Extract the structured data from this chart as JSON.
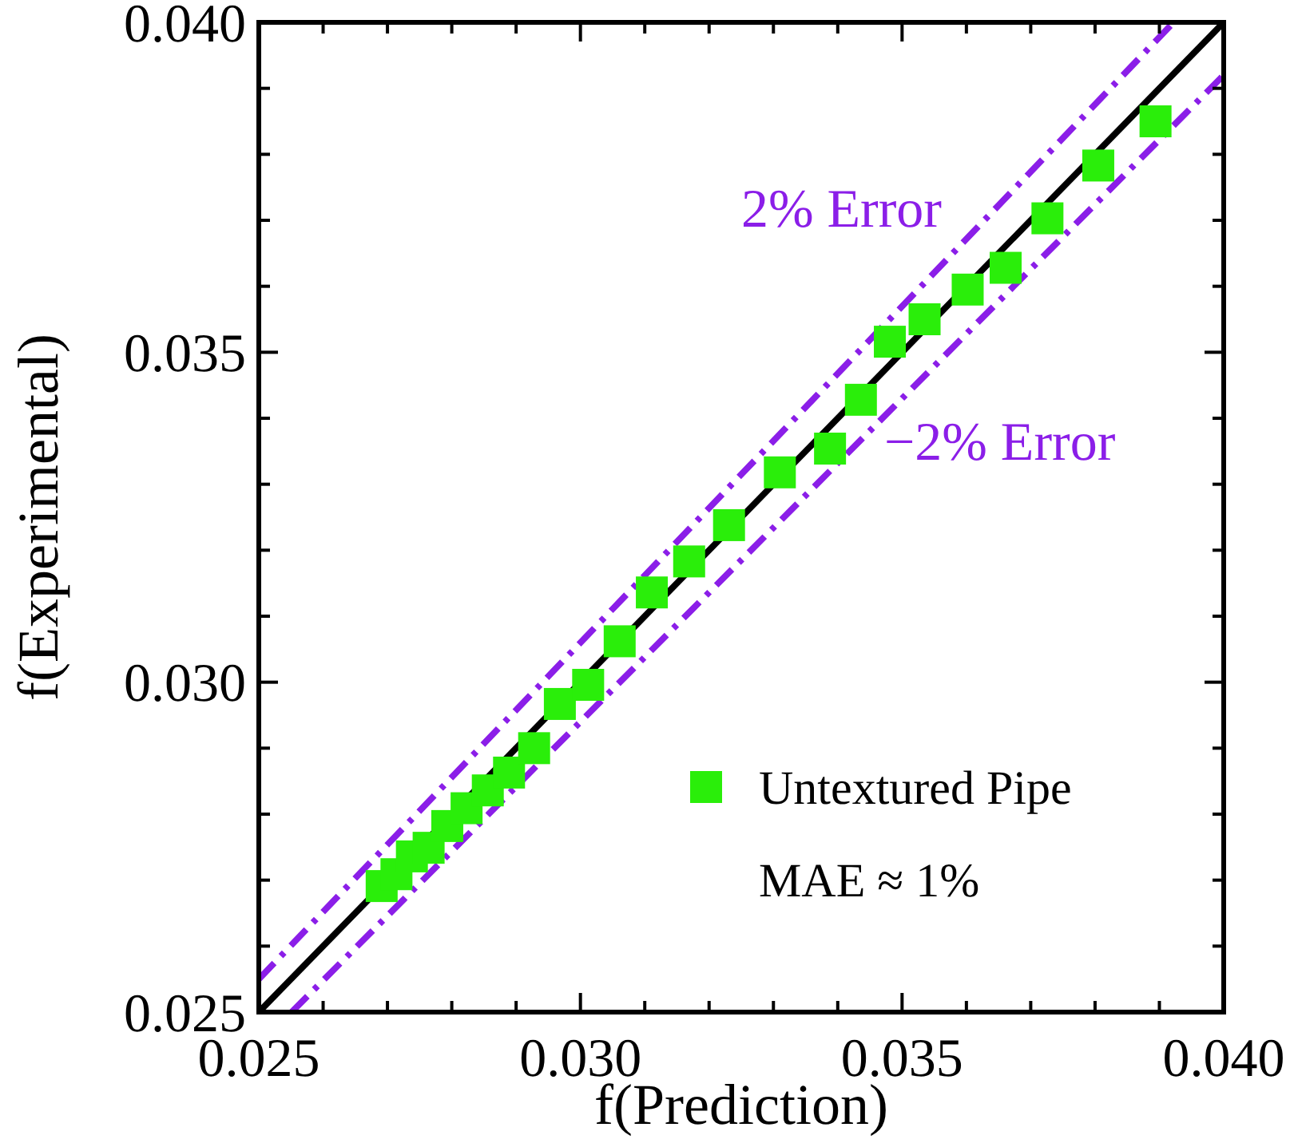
{
  "chart_data": {
    "type": "scatter",
    "xlabel": "f(Prediction)",
    "ylabel": "f(Experimental)",
    "xlim": [
      0.025,
      0.04
    ],
    "ylim": [
      0.025,
      0.04
    ],
    "xticks": [
      0.025,
      {
        "value": 0.026,
        "label": null
      },
      {
        "value": 0.027,
        "label": null
      },
      {
        "value": 0.028,
        "label": null
      },
      {
        "value": 0.029,
        "label": null
      },
      {
        "value": 0.03,
        "label": "0.030"
      },
      {
        "value": 0.031,
        "label": null
      },
      {
        "value": 0.032,
        "label": null
      },
      {
        "value": 0.033,
        "label": null
      },
      {
        "value": 0.034,
        "label": null
      },
      0.035,
      {
        "value": 0.036,
        "label": null
      },
      {
        "value": 0.037,
        "label": null
      },
      {
        "value": 0.038,
        "label": null
      },
      {
        "value": 0.039,
        "label": null
      },
      {
        "value": 0.04,
        "label": "0.040"
      }
    ],
    "yticks": [
      0.025,
      {
        "value": 0.026,
        "label": null
      },
      {
        "value": 0.027,
        "label": null
      },
      {
        "value": 0.028,
        "label": null
      },
      {
        "value": 0.029,
        "label": null
      },
      {
        "value": 0.03,
        "label": "0.030"
      },
      {
        "value": 0.031,
        "label": null
      },
      {
        "value": 0.032,
        "label": null
      },
      {
        "value": 0.033,
        "label": null
      },
      {
        "value": 0.034,
        "label": null
      },
      0.035,
      {
        "value": 0.036,
        "label": null
      },
      {
        "value": 0.037,
        "label": null
      },
      {
        "value": 0.038,
        "label": null
      },
      {
        "value": 0.039,
        "label": null
      },
      {
        "value": 0.04,
        "label": "0.040"
      }
    ],
    "grid": false,
    "legend": "bottom right",
    "marker": "square",
    "annotations": [
      "MAE ≈ 1%"
    ],
    "series": [
      {
        "type": "line",
        "color": "#000000",
        "line_style": "solid",
        "marker": "none",
        "x": [
          0.025,
          0.04
        ],
        "values": [
          0.025,
          0.04
        ]
      },
      {
        "type": "line",
        "name": "2% Error",
        "color": "#8b1ee8",
        "line_style": "dashed",
        "marker": "none",
        "x": [
          0.025,
          0.03922
        ],
        "values": [
          0.0255,
          0.04
        ]
      },
      {
        "type": "line",
        "name": "−2% Error",
        "color": "#8b1ee8",
        "line_style": "dashed",
        "marker": "none",
        "x": [
          0.02551,
          0.04
        ],
        "values": [
          0.025,
          0.0392
        ]
      },
      {
        "name": "Untextured Pipe",
        "color": "#2aee0a",
        "x": [
          0.02691,
          0.02714,
          0.02738,
          0.02764,
          0.02793,
          0.02823,
          0.02856,
          0.02889,
          0.02928,
          0.02968,
          0.03012,
          0.03061,
          0.03111,
          0.03169,
          0.03231,
          0.0331,
          0.03388,
          0.03436,
          0.03481,
          0.03535,
          0.03602,
          0.03661,
          0.03726,
          0.03805,
          0.03894
        ],
        "values": [
          0.02691,
          0.02709,
          0.02736,
          0.02749,
          0.02782,
          0.02809,
          0.02836,
          0.02863,
          0.029,
          0.02967,
          0.02996,
          0.03062,
          0.03136,
          0.03183,
          0.03238,
          0.03318,
          0.03354,
          0.03428,
          0.03516,
          0.0355,
          0.03595,
          0.03628,
          0.03703,
          0.03783,
          0.0385
        ]
      }
    ]
  }
}
